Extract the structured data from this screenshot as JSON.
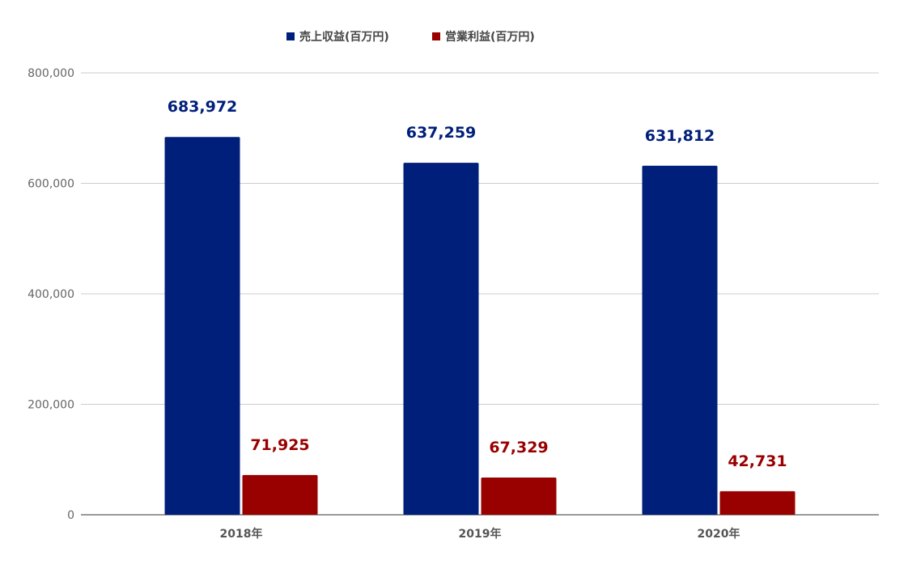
{
  "chart_data": {
    "type": "bar",
    "categories": [
      "2018年",
      "2019年",
      "2020年"
    ],
    "series": [
      {
        "name": "売上収益(百万円)",
        "color": "#001F7A",
        "values": [
          683972,
          637259,
          631812
        ],
        "labels": [
          "683,972",
          "637,259",
          "631,812"
        ]
      },
      {
        "name": "営業利益(百万円)",
        "color": "#990000",
        "values": [
          71925,
          67329,
          42731
        ],
        "labels": [
          "71,925",
          "67,329",
          "42,731"
        ]
      }
    ],
    "ylim": [
      0,
      800000
    ],
    "yticks": [
      0,
      200000,
      400000,
      600000,
      800000
    ],
    "ytick_labels": [
      "0",
      "200,000",
      "400,000",
      "600,000",
      "800,000"
    ],
    "grid": true,
    "legend_position": "top-center"
  }
}
